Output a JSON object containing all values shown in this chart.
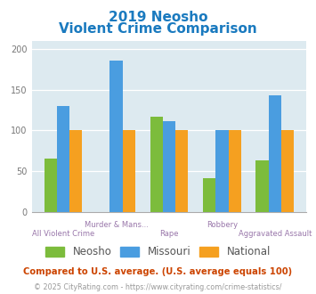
{
  "title_line1": "2019 Neosho",
  "title_line2": "Violent Crime Comparison",
  "title_color": "#1a7abf",
  "categories": [
    "All Violent Crime",
    "Murder & Mans...",
    "Rape",
    "Robbery",
    "Aggravated Assault"
  ],
  "label_row": [
    0,
    1,
    0,
    1,
    0
  ],
  "neosho": [
    65,
    0,
    117,
    41,
    63
  ],
  "missouri": [
    130,
    186,
    111,
    100,
    143
  ],
  "national": [
    101,
    101,
    101,
    101,
    101
  ],
  "neosho_color": "#7cbc3c",
  "missouri_color": "#4a9de0",
  "national_color": "#f5a020",
  "ylim": [
    0,
    210
  ],
  "yticks": [
    0,
    50,
    100,
    150,
    200
  ],
  "bg_color": "#ddeaf0",
  "legend_neosho": "Neosho",
  "legend_missouri": "Missouri",
  "legend_national": "National",
  "label_color": "#9977aa",
  "footnote1": "Compared to U.S. average. (U.S. average equals 100)",
  "footnote2": "© 2025 CityRating.com - https://www.cityrating.com/crime-statistics/",
  "footnote1_color": "#cc4400",
  "footnote2_color": "#999999",
  "footnote2_url_color": "#4488cc"
}
